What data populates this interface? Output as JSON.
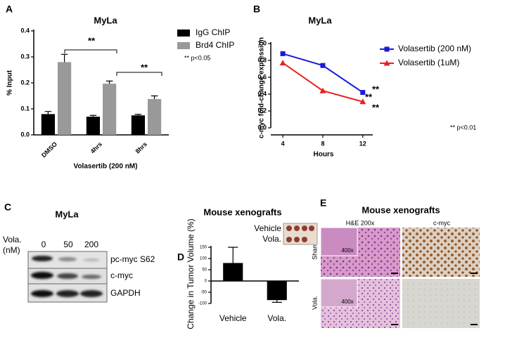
{
  "chart_data": [
    {
      "panel": "A",
      "type": "bar",
      "title": "MyLa",
      "ylabel": "% Input",
      "xlabel": "Volasertib (200 nM)",
      "categories": [
        "DMSO",
        "4hrs",
        "8hrs"
      ],
      "series": [
        {
          "name": "IgG ChIP",
          "color": "#000000",
          "values": [
            0.08,
            0.07,
            0.075
          ],
          "errors": [
            0.01,
            0.005,
            0.004
          ]
        },
        {
          "name": "Brd4 ChIP",
          "color": "#999999",
          "values": [
            0.28,
            0.197,
            0.138
          ],
          "errors": [
            0.03,
            0.01,
            0.012
          ]
        }
      ],
      "ylim": [
        0,
        0.4
      ],
      "yticks": [
        {
          "value": 0,
          "label": "0.0"
        },
        0.1,
        0.2,
        0.3,
        0.4
      ],
      "annotations": [
        "**",
        "**",
        "** p<0.05"
      ]
    },
    {
      "panel": "B",
      "type": "line",
      "title": "MyLa",
      "ylabel": "c-myc fold-change expression",
      "xlabel": "Hours",
      "x": [
        4,
        8,
        12
      ],
      "xlim": [
        3.5,
        13
      ],
      "xticks": [
        4,
        8,
        12
      ],
      "ylim": [
        0,
        1
      ],
      "yticks": [
        {
          "value": 0,
          "label": "0.0"
        },
        0.2,
        0.4,
        0.6,
        0.8,
        {
          "value": 1,
          "label": "1.0"
        }
      ],
      "series": [
        {
          "name": "Volasertib (200 nM)",
          "color": "#1a1adc",
          "values": [
            0.88,
            0.74,
            0.42
          ]
        },
        {
          "name": "Volasertib (1uM)",
          "color": "#e82020",
          "values": [
            0.77,
            0.44,
            0.31
          ]
        }
      ],
      "annotations": [
        "**",
        "**",
        "**",
        "** p<0.01"
      ]
    },
    {
      "panel": "D",
      "type": "bar",
      "title": "Mouse xenografts",
      "ylabel": "Change in Tumor Volume (%)",
      "categories": [
        "Vehicle",
        "Vola."
      ],
      "values": [
        80,
        -85
      ],
      "errors": [
        70,
        10
      ],
      "color": "#000000",
      "ylim": [
        -100,
        150
      ],
      "yticks": [
        -100,
        -50,
        0,
        50,
        100,
        150
      ],
      "inset_labels": [
        "Vehicle",
        "Vola."
      ]
    }
  ],
  "blot": {
    "panel": "C",
    "title": "MyLa",
    "treatment_label": [
      "Vola.",
      "(nM)"
    ],
    "doses": [
      "0",
      "50",
      "200"
    ],
    "rows": [
      "pc-myc S62",
      "c-myc",
      "GAPDH"
    ]
  },
  "histology": {
    "panel": "E",
    "title": "Mouse xenografts",
    "columns": [
      "H&E 200x",
      "c-myc"
    ],
    "rows": [
      "Sham",
      "Vola."
    ],
    "inset_label": "400x"
  }
}
